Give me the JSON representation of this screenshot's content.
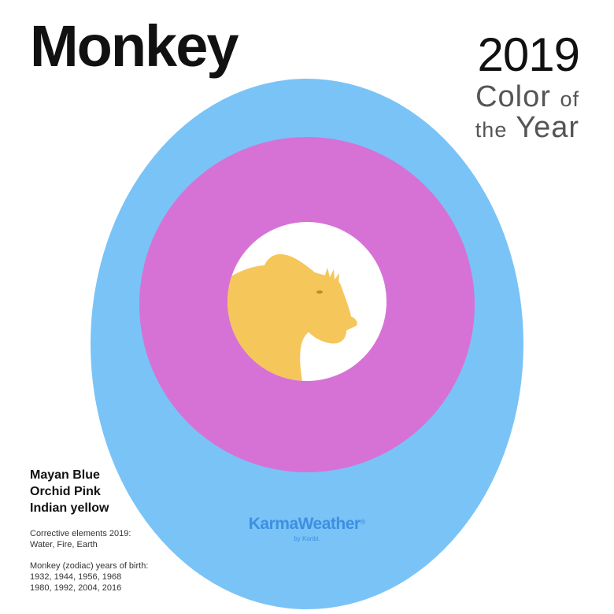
{
  "header": {
    "title": "Monkey",
    "year": "2019",
    "subtitle_word1": "Color",
    "subtitle_word2": "of",
    "subtitle_word3": "the",
    "subtitle_word4": "Year"
  },
  "palette": {
    "outer_color": "#7ac3f7",
    "middle_color": "#d672d5",
    "inner_color": "#ffffff",
    "animal_color": "#f5c65a",
    "names": [
      "Mayan Blue",
      "Orchid Pink",
      "Indian yellow"
    ]
  },
  "corrective": {
    "label": "Corrective elements 2019:",
    "value": "Water, Fire, Earth"
  },
  "birth_years": {
    "label": "Monkey (zodiac) years of birth:",
    "line1": "1932, 1944, 1956, 1968",
    "line2": "1980, 1992, 2004, 2016"
  },
  "brand": {
    "name": "KarmaWeather",
    "mark": "®",
    "byline": "by Konbi."
  },
  "illustration": {
    "icon": "monkey-head-icon"
  }
}
